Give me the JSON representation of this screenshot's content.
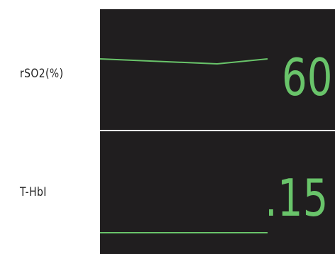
{
  "monitor": {
    "rso2": {
      "label": "rSO2(%)",
      "value": "60",
      "color": "#69c46a"
    },
    "thbi": {
      "label": "T-HbI",
      "value": ".15",
      "color": "#69c46a"
    }
  }
}
